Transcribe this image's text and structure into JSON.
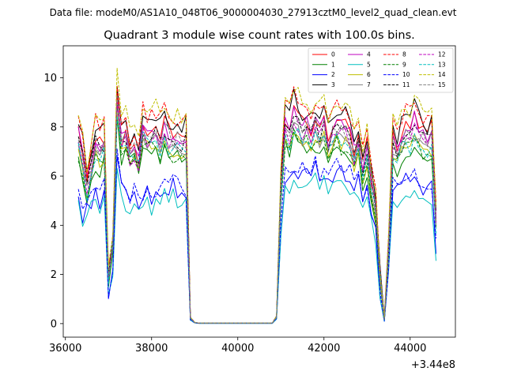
{
  "figure": {
    "suptitle": "Data file: modeM0/AS1A10_048T06_9000004030_27913cztM0_level2_quad_clean.evt"
  },
  "chart_data": {
    "type": "line",
    "title": "Quadrant 3 module wise count rates with 100.0s bins.",
    "xlabel": "",
    "ylabel": "",
    "x_offset_label": "+3.44e8",
    "xlim": [
      35950,
      45050
    ],
    "ylim": [
      -0.55,
      11.3
    ],
    "xticks": [
      36000,
      38000,
      40000,
      42000,
      44000
    ],
    "xtick_labels": [
      "36000",
      "38000",
      "40000",
      "42000",
      "44000"
    ],
    "yticks": [
      0,
      2,
      4,
      6,
      8,
      10
    ],
    "ytick_labels": [
      "0",
      "2",
      "4",
      "6",
      "8",
      "10"
    ],
    "legend_position": "upper-right",
    "legend_columns": 4,
    "segments": [
      {
        "name": "seg1",
        "start": 36300,
        "step": 100,
        "n": 26
      },
      {
        "name": "seg2",
        "start": 38900,
        "step": 100,
        "n": 20
      },
      {
        "name": "seg3",
        "start": 40900,
        "step": 100,
        "n": 38
      }
    ],
    "profiles": {
      "high": {
        "seg1": [
          8.1,
          7.3,
          6.0,
          7.0,
          7.9,
          7.6,
          7.8,
          2.1,
          3.5,
          9.6,
          7.7,
          8.3,
          7.2,
          7.5,
          6.9,
          8.4,
          7.8,
          8.1,
          8.3,
          8.0,
          8.5,
          8.1,
          7.9,
          8.0,
          7.8,
          8.0
        ],
        "seg2": [
          0.25,
          0.05,
          0.02,
          0.02,
          0.02,
          0.02,
          0.02,
          0.02,
          0.02,
          0.02,
          0.02,
          0.02,
          0.02,
          0.02,
          0.02,
          0.02,
          0.02,
          0.02,
          0.02,
          0.02
        ],
        "seg3": [
          0.3,
          5.8,
          8.7,
          8.3,
          9.1,
          8.8,
          8.4,
          8.5,
          8.2,
          8.7,
          8.3,
          8.5,
          7.8,
          8.4,
          8.6,
          8.3,
          8.5,
          8.1,
          7.3,
          7.9,
          6.8,
          7.5,
          6.0,
          5.1,
          2.1,
          0.2,
          3.3,
          7.9,
          7.4,
          8.0,
          8.5,
          8.2,
          8.7,
          8.4,
          8.1,
          7.9,
          8.2,
          4.5
        ]
      },
      "mid": {
        "seg1": [
          7.1,
          6.2,
          5.3,
          6.1,
          6.8,
          6.6,
          6.9,
          1.8,
          3.1,
          8.6,
          7.0,
          7.5,
          6.8,
          7.0,
          6.6,
          7.5,
          7.2,
          7.4,
          7.3,
          7.0,
          7.5,
          7.2,
          7.0,
          7.1,
          6.9,
          7.0
        ],
        "seg2": [
          0.22,
          0.04,
          0.02,
          0.02,
          0.02,
          0.02,
          0.02,
          0.02,
          0.02,
          0.02,
          0.02,
          0.02,
          0.02,
          0.02,
          0.02,
          0.02,
          0.02,
          0.02,
          0.02,
          0.02
        ],
        "seg3": [
          0.25,
          5.1,
          7.6,
          7.3,
          7.9,
          7.7,
          7.4,
          7.5,
          7.3,
          7.6,
          7.3,
          7.5,
          6.9,
          7.4,
          7.5,
          7.3,
          7.4,
          7.1,
          6.5,
          7.0,
          6.0,
          6.6,
          5.3,
          4.5,
          1.8,
          0.15,
          2.9,
          7.0,
          6.6,
          7.1,
          7.4,
          7.2,
          7.5,
          7.3,
          7.1,
          6.9,
          7.1,
          4.0
        ]
      },
      "low": {
        "seg1": [
          5.2,
          4.2,
          4.6,
          5.0,
          5.3,
          5.0,
          5.4,
          1.2,
          2.2,
          6.6,
          5.6,
          5.1,
          5.0,
          5.2,
          4.9,
          5.0,
          5.3,
          5.0,
          5.2,
          5.5,
          5.6,
          5.3,
          5.6,
          5.4,
          5.5,
          5.3
        ],
        "seg2": [
          0.15,
          0.03,
          0.01,
          0.01,
          0.01,
          0.01,
          0.01,
          0.01,
          0.01,
          0.01,
          0.01,
          0.01,
          0.01,
          0.01,
          0.01,
          0.01,
          0.01,
          0.01,
          0.01,
          0.01
        ],
        "seg3": [
          0.2,
          4.0,
          5.8,
          5.9,
          6.2,
          6.1,
          6.3,
          6.2,
          6.0,
          6.3,
          5.9,
          6.2,
          5.8,
          6.1,
          6.3,
          6.2,
          6.0,
          5.9,
          5.4,
          5.8,
          4.8,
          5.4,
          4.3,
          3.6,
          1.3,
          0.1,
          2.1,
          5.5,
          5.3,
          5.6,
          5.8,
          5.7,
          5.9,
          5.6,
          5.5,
          5.3,
          5.5,
          3.0
        ]
      }
    },
    "series": [
      {
        "name": "0",
        "color": "#ff0000",
        "dash": "solid",
        "profile": "high",
        "scale": 0.97
      },
      {
        "name": "1",
        "color": "#008000",
        "dash": "solid",
        "profile": "mid",
        "scale": 0.95
      },
      {
        "name": "2",
        "color": "#0000ff",
        "dash": "solid",
        "profile": "low",
        "scale": 1.0
      },
      {
        "name": "3",
        "color": "#000000",
        "dash": "solid",
        "profile": "high",
        "scale": 1.02
      },
      {
        "name": "4",
        "color": "#bf00bf",
        "dash": "solid",
        "profile": "high",
        "scale": 0.96
      },
      {
        "name": "5",
        "color": "#00bfbf",
        "dash": "solid",
        "profile": "low",
        "scale": 0.93
      },
      {
        "name": "6",
        "color": "#bfbf00",
        "dash": "solid",
        "profile": "mid",
        "scale": 1.0
      },
      {
        "name": "7",
        "color": "#808080",
        "dash": "solid",
        "profile": "mid",
        "scale": 1.02
      },
      {
        "name": "8",
        "color": "#ff0000",
        "dash": "dashed",
        "profile": "high",
        "scale": 1.04
      },
      {
        "name": "9",
        "color": "#008000",
        "dash": "dashed",
        "profile": "mid",
        "scale": 0.98
      },
      {
        "name": "10",
        "color": "#0000ff",
        "dash": "dashed",
        "profile": "low",
        "scale": 1.04
      },
      {
        "name": "11",
        "color": "#000000",
        "dash": "dashed",
        "profile": "high",
        "scale": 0.93
      },
      {
        "name": "12",
        "color": "#bf00bf",
        "dash": "dashed",
        "profile": "high",
        "scale": 0.92
      },
      {
        "name": "13",
        "color": "#00bfbf",
        "dash": "dashed",
        "profile": "mid",
        "scale": 1.0
      },
      {
        "name": "14",
        "color": "#bfbf00",
        "dash": "dashed",
        "profile": "high",
        "scale": 1.06
      },
      {
        "name": "15",
        "color": "#808080",
        "dash": "dashed",
        "profile": "mid",
        "scale": 1.06
      }
    ]
  }
}
